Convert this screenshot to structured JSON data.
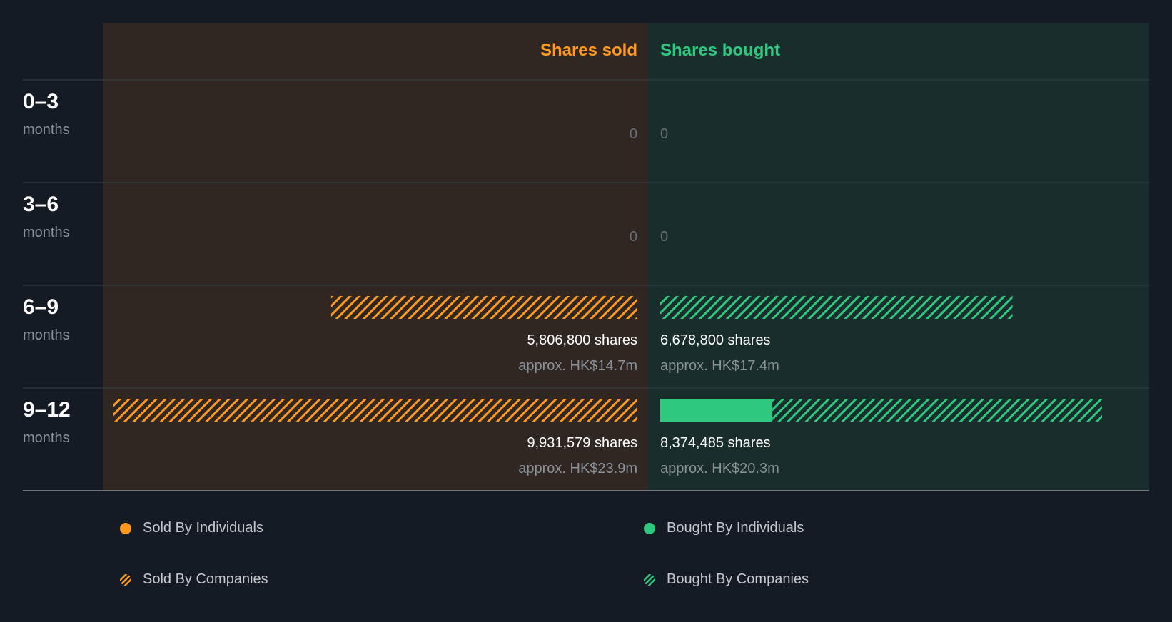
{
  "chart_data": {
    "type": "bar",
    "headers": {
      "sold": "Shares sold",
      "bought": "Shares bought"
    },
    "periods": [
      {
        "range": "0–3",
        "unit": "months",
        "sold": {
          "individuals": 0,
          "companies": 0,
          "shares_label": "0",
          "approx_label": ""
        },
        "bought": {
          "individuals": 0,
          "companies": 0,
          "shares_label": "0",
          "approx_label": ""
        }
      },
      {
        "range": "3–6",
        "unit": "months",
        "sold": {
          "individuals": 0,
          "companies": 0,
          "shares_label": "0",
          "approx_label": ""
        },
        "bought": {
          "individuals": 0,
          "companies": 0,
          "shares_label": "0",
          "approx_label": ""
        }
      },
      {
        "range": "6–9",
        "unit": "months",
        "sold": {
          "individuals": 0,
          "companies": 5806800,
          "shares_label": "5,806,800 shares",
          "approx_label": "approx. HK$14.7m"
        },
        "bought": {
          "individuals": 0,
          "companies": 6678800,
          "shares_label": "6,678,800 shares",
          "approx_label": "approx. HK$17.4m"
        }
      },
      {
        "range": "9–12",
        "unit": "months",
        "sold": {
          "individuals": 0,
          "companies": 9931579,
          "shares_label": "9,931,579 shares",
          "approx_label": "approx. HK$23.9m"
        },
        "bought": {
          "individuals": 2126000,
          "companies": 6248485,
          "shares_label": "8,374,485 shares",
          "approx_label": "approx. HK$20.3m"
        }
      }
    ],
    "legend": [
      {
        "key": "sold-individuals",
        "label": "Sold By Individuals",
        "style": "solid",
        "color": "#ff9a1f"
      },
      {
        "key": "sold-companies",
        "label": "Sold By Companies",
        "style": "hatched",
        "color": "#ff9a1f"
      },
      {
        "key": "bought-individuals",
        "label": "Bought By Individuals",
        "style": "solid",
        "color": "#2ec97f"
      },
      {
        "key": "bought-companies",
        "label": "Bought By Companies",
        "style": "hatched",
        "color": "#2ec97f"
      }
    ],
    "colors": {
      "background": "#151b24",
      "sold_panel": "#302722",
      "bought_panel": "#182d2c",
      "sold": "#ff9a1f",
      "bought": "#2ec97f",
      "zero_text": "#69707a",
      "muted_text": "#8b9199"
    }
  }
}
